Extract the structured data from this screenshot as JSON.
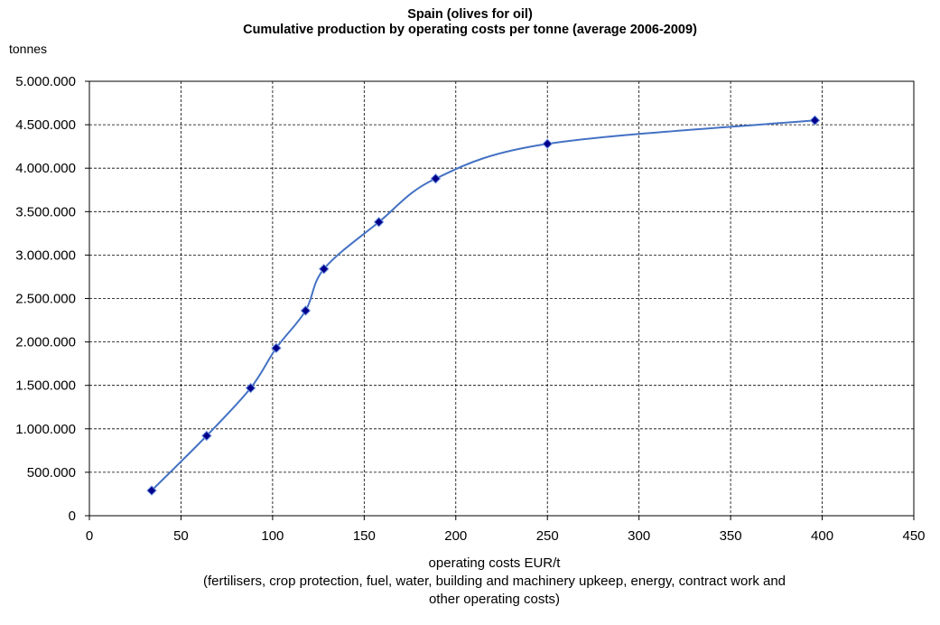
{
  "chart_data": {
    "type": "line",
    "title": "Spain (olives for oil)",
    "subtitle": "Cumulative production by operating costs per tonne (average 2006-2009)",
    "ylabel": "tonnes",
    "xlabel": "operating costs EUR/t",
    "xlabel_note_line1": "(fertilisers, crop protection, fuel, water, building and machinery upkeep, energy, contract work and",
    "xlabel_note_line2": "other operating costs)",
    "xlim": [
      0,
      450
    ],
    "ylim": [
      0,
      5000000
    ],
    "x_ticks": [
      "0",
      "50",
      "100",
      "150",
      "200",
      "250",
      "300",
      "350",
      "400",
      "450"
    ],
    "y_ticks": [
      "0",
      "500.000",
      "1.000.000",
      "1.500.000",
      "2.000.000",
      "2.500.000",
      "3.000.000",
      "3.500.000",
      "4.000.000",
      "4.500.000",
      "5.000.000"
    ],
    "grid": true,
    "smoothed": true,
    "series": [
      {
        "color": "#4472c4",
        "marker_color": "#00008b",
        "x": [
          34,
          64,
          88,
          102,
          118,
          128,
          158,
          189,
          250,
          396
        ],
        "y": [
          290000,
          920000,
          1470000,
          1930000,
          2360000,
          2840000,
          3380000,
          3880000,
          4280000,
          4550000
        ]
      }
    ]
  }
}
